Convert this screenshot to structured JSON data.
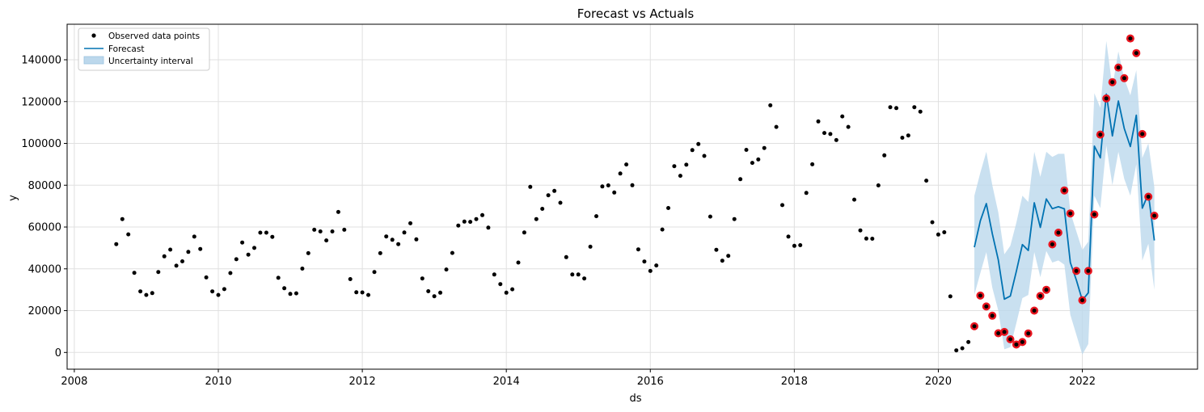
{
  "chart_data": {
    "type": "line",
    "title": "Forecast vs Actuals",
    "xlabel": "ds",
    "ylabel": "y",
    "xlim": [
      2007.9,
      2023.6
    ],
    "ylim": [
      -8000,
      157000
    ],
    "grid": true,
    "legend_position": "top-left",
    "x_ticks": [
      2008,
      2010,
      2012,
      2014,
      2016,
      2018,
      2020,
      2022
    ],
    "y_ticks": [
      0,
      20000,
      40000,
      60000,
      80000,
      100000,
      120000,
      140000
    ],
    "x_tick_labels": [
      "2008",
      "2010",
      "2012",
      "2014",
      "2016",
      "2018",
      "2020",
      "2022"
    ],
    "y_tick_labels": [
      "0",
      "20000",
      "40000",
      "60000",
      "80000",
      "100000",
      "120000",
      "140000"
    ],
    "colors": {
      "observed": "#000000",
      "forecast": "#0072b2",
      "interval": "#bcd8ec",
      "highlight": "#e8141e"
    },
    "series": [
      {
        "name": "Observed data points",
        "kind": "scatter",
        "x": [
          2008.583,
          2008.667,
          2008.75,
          2008.833,
          2008.917,
          2009.0,
          2009.083,
          2009.167,
          2009.25,
          2009.333,
          2009.417,
          2009.5,
          2009.583,
          2009.667,
          2009.75,
          2009.833,
          2009.917,
          2010.0,
          2010.083,
          2010.167,
          2010.25,
          2010.333,
          2010.417,
          2010.5,
          2010.583,
          2010.667,
          2010.75,
          2010.833,
          2010.917,
          2011.0,
          2011.083,
          2011.167,
          2011.25,
          2011.333,
          2011.417,
          2011.5,
          2011.583,
          2011.667,
          2011.75,
          2011.833,
          2011.917,
          2012.0,
          2012.083,
          2012.167,
          2012.25,
          2012.333,
          2012.417,
          2012.5,
          2012.583,
          2012.667,
          2012.75,
          2012.833,
          2012.917,
          2013.0,
          2013.083,
          2013.167,
          2013.25,
          2013.333,
          2013.417,
          2013.5,
          2013.583,
          2013.667,
          2013.75,
          2013.833,
          2013.917,
          2014.0,
          2014.083,
          2014.167,
          2014.25,
          2014.333,
          2014.417,
          2014.5,
          2014.583,
          2014.667,
          2014.75,
          2014.833,
          2014.917,
          2015.0,
          2015.083,
          2015.167,
          2015.25,
          2015.333,
          2015.417,
          2015.5,
          2015.583,
          2015.667,
          2015.75,
          2015.833,
          2015.917,
          2016.0,
          2016.083,
          2016.167,
          2016.25,
          2016.333,
          2016.417,
          2016.5,
          2016.583,
          2016.667,
          2016.75,
          2016.833,
          2016.917,
          2017.0,
          2017.083,
          2017.167,
          2017.25,
          2017.333,
          2017.417,
          2017.5,
          2017.583,
          2017.667,
          2017.75,
          2017.833,
          2017.917,
          2018.0,
          2018.083,
          2018.167,
          2018.25,
          2018.333,
          2018.417,
          2018.5,
          2018.583,
          2018.667,
          2018.75,
          2018.833,
          2018.917,
          2019.0,
          2019.083,
          2019.167,
          2019.25,
          2019.333,
          2019.417,
          2019.5,
          2019.583,
          2019.667,
          2019.75,
          2019.833,
          2019.917,
          2020.0,
          2020.083,
          2020.167,
          2020.25,
          2020.333,
          2020.417,
          2020.5,
          2020.583,
          2020.667,
          2020.75,
          2020.833,
          2020.917,
          2021.0,
          2021.083,
          2021.167,
          2021.25,
          2021.333,
          2021.417,
          2021.5,
          2021.583,
          2021.667,
          2021.75,
          2021.833,
          2021.917,
          2022.0,
          2022.083,
          2022.167,
          2022.25,
          2022.333,
          2022.417,
          2022.5,
          2022.583,
          2022.667,
          2022.75,
          2022.833,
          2022.917,
          2023.0
        ],
        "y": [
          51800,
          63800,
          56500,
          38100,
          29200,
          27500,
          28400,
          38500,
          46000,
          49200,
          41500,
          43600,
          48100,
          55400,
          49500,
          35900,
          29200,
          27500,
          30300,
          38000,
          44600,
          52600,
          46800,
          50000,
          57300,
          57300,
          55300,
          35700,
          30700,
          28000,
          28300,
          40100,
          47500,
          58700,
          57900,
          53600,
          57900,
          67200,
          58700,
          35100,
          28800,
          28700,
          27500,
          38500,
          47500,
          55500,
          53900,
          51800,
          57400,
          61800,
          54100,
          35400,
          29300,
          26900,
          28600,
          39700,
          47600,
          60700,
          62600,
          62500,
          63800,
          65700,
          59700,
          37300,
          32700,
          28600,
          30200,
          43000,
          57400,
          79200,
          63800,
          68700,
          75200,
          77300,
          71600,
          45600,
          37300,
          37300,
          35400,
          50600,
          65200,
          79400,
          79900,
          76500,
          85600,
          89900,
          80000,
          49300,
          43500,
          39000,
          41600,
          58800,
          69100,
          89100,
          84500,
          89800,
          96800,
          99700,
          94000,
          65000,
          49100,
          43900,
          46200,
          63800,
          82900,
          96900,
          90700,
          92300,
          97800,
          118200,
          107900,
          70500,
          55400,
          51000,
          51300,
          76300,
          90000,
          110500,
          105000,
          104500,
          101600,
          112900,
          107900,
          73100,
          58400,
          54500,
          54400,
          79900,
          94300,
          117300,
          116900,
          102700,
          103800,
          117300,
          115200,
          82200,
          62300,
          56400,
          57500,
          26800,
          1000,
          2000,
          5000,
          12500,
          27200,
          22000,
          17600,
          9200,
          9800,
          6300,
          3800,
          5000,
          9100,
          20000,
          27000,
          30000,
          51700,
          57300,
          77500,
          66500,
          39000,
          25000,
          39000,
          66000,
          104200,
          121500,
          129300,
          136300,
          131200,
          150200,
          143200,
          104500,
          74500,
          65400
        ]
      },
      {
        "name": "Forecast",
        "kind": "line",
        "x": [
          2020.5,
          2020.583,
          2020.667,
          2020.75,
          2020.833,
          2020.917,
          2021.0,
          2021.083,
          2021.167,
          2021.25,
          2021.333,
          2021.417,
          2021.5,
          2021.583,
          2021.667,
          2021.75,
          2021.833,
          2021.917,
          2022.0,
          2022.083,
          2022.167,
          2022.25,
          2022.333,
          2022.417,
          2022.5,
          2022.583,
          2022.667,
          2022.75,
          2022.833,
          2022.917,
          2023.0
        ],
        "y": [
          50300,
          63000,
          71200,
          56800,
          44300,
          25500,
          27000,
          38800,
          51600,
          48800,
          71600,
          59800,
          73400,
          68800,
          69700,
          68700,
          43000,
          34700,
          25000,
          28500,
          98700,
          93100,
          123600,
          103600,
          120300,
          107100,
          98500,
          113500,
          69000,
          75900,
          53600
        ]
      },
      {
        "name": "Uncertainty interval",
        "kind": "band",
        "x": [
          2020.5,
          2020.583,
          2020.667,
          2020.75,
          2020.833,
          2020.917,
          2021.0,
          2021.083,
          2021.167,
          2021.25,
          2021.333,
          2021.417,
          2021.5,
          2021.583,
          2021.667,
          2021.75,
          2021.833,
          2021.917,
          2022.0,
          2022.083,
          2022.167,
          2022.25,
          2022.333,
          2022.417,
          2022.5,
          2022.583,
          2022.667,
          2022.75,
          2022.833,
          2022.917,
          2023.0
        ],
        "lower": [
          27500,
          38000,
          48000,
          31000,
          20000,
          1500,
          2500,
          14000,
          26000,
          27500,
          48000,
          36000,
          48500,
          43000,
          44000,
          42000,
          18000,
          8500,
          -1000,
          4000,
          75000,
          69000,
          99000,
          80000,
          96000,
          83000,
          75000,
          90000,
          44000,
          52000,
          30000
        ],
        "upper": [
          75000,
          86000,
          96000,
          80000,
          67000,
          47000,
          51000,
          62000,
          75000,
          72000,
          96000,
          84000,
          96000,
          93500,
          95000,
          95000,
          67000,
          58000,
          49000,
          53000,
          124000,
          117000,
          149000,
          127000,
          144000,
          131000,
          123000,
          135000,
          93000,
          100000,
          79000
        ]
      }
    ],
    "highlighted_points": {
      "x": [
        2020.5,
        2020.583,
        2020.667,
        2020.75,
        2020.833,
        2020.917,
        2021.0,
        2021.083,
        2021.167,
        2021.25,
        2021.333,
        2021.417,
        2021.5,
        2021.583,
        2021.667,
        2021.75,
        2021.833,
        2021.917,
        2022.0,
        2022.083,
        2022.167,
        2022.25,
        2022.333,
        2022.417,
        2022.5,
        2022.583,
        2022.667,
        2022.75,
        2022.833,
        2022.917,
        2023.0
      ],
      "y": [
        12500,
        27200,
        22000,
        17600,
        9200,
        9800,
        6300,
        3800,
        5000,
        9100,
        20000,
        27000,
        30000,
        51700,
        57300,
        77500,
        66500,
        39000,
        25000,
        39000,
        66000,
        104200,
        121500,
        129300,
        136300,
        131200,
        150200,
        143200,
        104500,
        74500,
        65400
      ]
    }
  }
}
